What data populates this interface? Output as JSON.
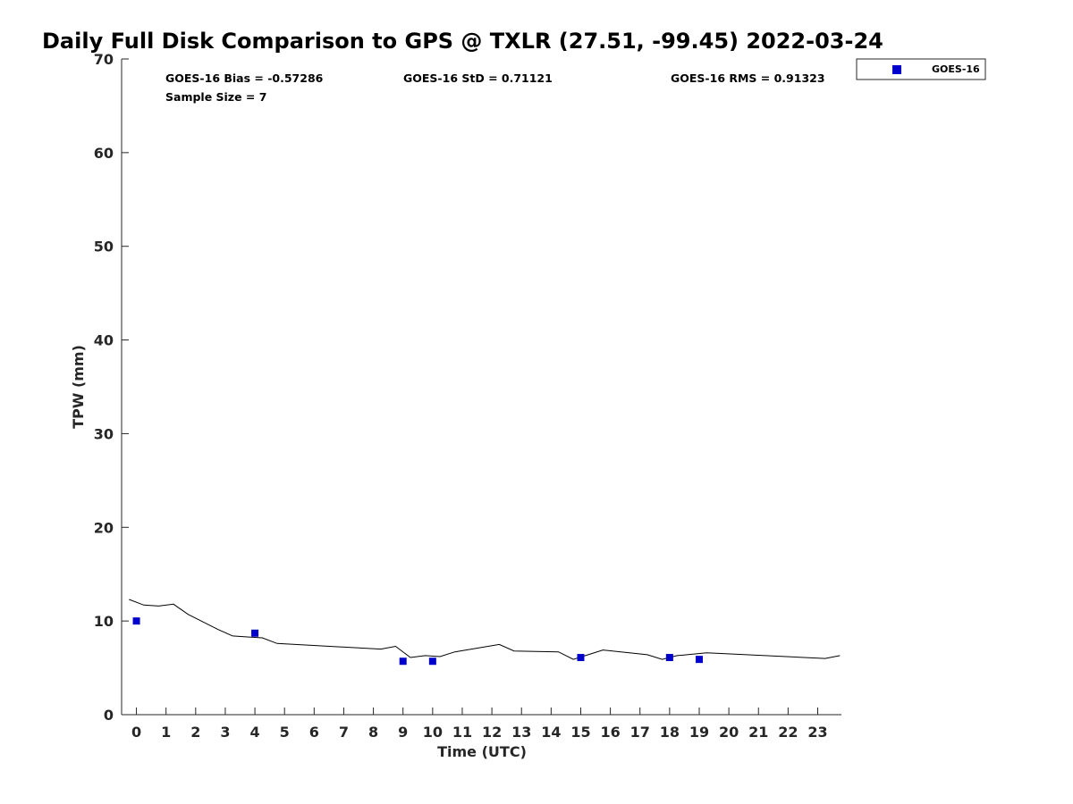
{
  "chart_data": {
    "type": "scatter",
    "title": "Daily Full Disk Comparison to GPS @ TXLR (27.51, -99.45) 2022-03-24",
    "xlabel": "Time (UTC)",
    "ylabel": "TPW (mm)",
    "xlim": [
      -0.5,
      23.8
    ],
    "ylim": [
      0,
      70
    ],
    "x_ticks": [
      0,
      1,
      2,
      3,
      4,
      5,
      6,
      7,
      8,
      9,
      10,
      11,
      12,
      13,
      14,
      15,
      16,
      17,
      18,
      19,
      20,
      21,
      22,
      23
    ],
    "y_ticks": [
      0,
      10,
      20,
      30,
      40,
      50,
      60,
      70
    ],
    "stats": {
      "bias": "GOES-16 Bias = -0.57286",
      "std": "GOES-16 StD = 0.71121",
      "rms": "GOES-16 RMS = 0.91323",
      "sample": "Sample Size = 7"
    },
    "legend_position": "top-right, outside plot",
    "series": [
      {
        "name": "GOES-16",
        "kind": "scatter",
        "marker": "square",
        "color": "#0000cd",
        "points": [
          [
            0.0,
            10.0
          ],
          [
            4.0,
            8.7
          ],
          [
            9.0,
            5.7
          ],
          [
            10.0,
            5.7
          ],
          [
            15.0,
            6.1
          ],
          [
            18.0,
            6.1
          ],
          [
            19.0,
            5.9
          ]
        ]
      },
      {
        "kind": "line",
        "color": "#000000",
        "points": [
          [
            -0.25,
            12.3
          ],
          [
            0.25,
            11.7
          ],
          [
            0.75,
            11.6
          ],
          [
            1.25,
            11.8
          ],
          [
            1.75,
            10.7
          ],
          [
            2.25,
            9.9
          ],
          [
            2.75,
            9.1
          ],
          [
            3.25,
            8.4
          ],
          [
            3.75,
            8.3
          ],
          [
            4.25,
            8.2
          ],
          [
            4.75,
            7.6
          ],
          [
            8.25,
            7.0
          ],
          [
            8.75,
            7.3
          ],
          [
            9.25,
            6.1
          ],
          [
            9.75,
            6.3
          ],
          [
            10.25,
            6.2
          ],
          [
            10.75,
            6.7
          ],
          [
            12.25,
            7.5
          ],
          [
            12.75,
            6.8
          ],
          [
            14.25,
            6.7
          ],
          [
            14.75,
            5.9
          ],
          [
            15.25,
            6.4
          ],
          [
            15.75,
            6.9
          ],
          [
            17.25,
            6.4
          ],
          [
            17.75,
            5.9
          ],
          [
            18.25,
            6.3
          ],
          [
            19.25,
            6.6
          ],
          [
            23.25,
            6.0
          ],
          [
            23.75,
            6.3
          ]
        ]
      }
    ]
  }
}
